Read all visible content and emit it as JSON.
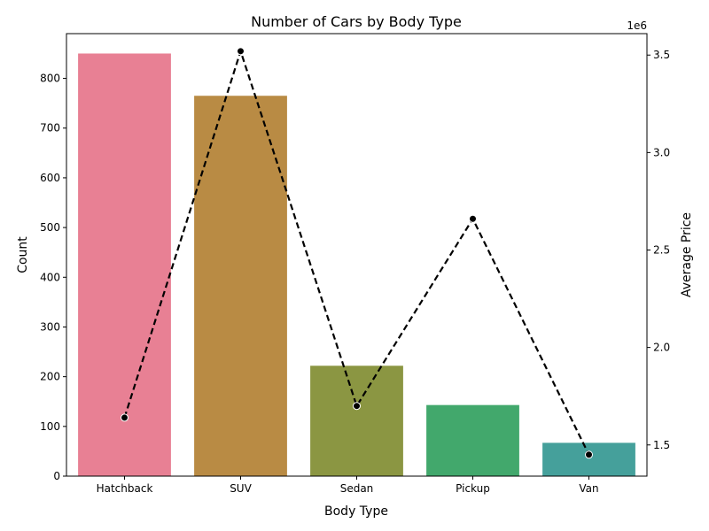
{
  "chart_data": {
    "type": "bar",
    "title": "Number of Cars by Body Type",
    "xlabel": "Body Type",
    "ylabel": "Count",
    "y2label": "Average Price",
    "y2_offset_label": "1e6",
    "categories": [
      "Hatchback",
      "SUV",
      "Sedan",
      "Pickup",
      "Van"
    ],
    "series": [
      {
        "type": "bar",
        "axis": "left",
        "values": [
          850,
          765,
          222,
          143,
          67
        ],
        "colors": [
          "#e88094",
          "#b98b44",
          "#8b9642",
          "#42a86c",
          "#45a09b"
        ]
      },
      {
        "type": "line",
        "axis": "right",
        "values": [
          1640000,
          3520000,
          1700000,
          2660000,
          1450000
        ],
        "color": "#000000",
        "style": "dashed",
        "marker": "circle"
      }
    ],
    "ylim": [
      0,
      890
    ],
    "y2lim": [
      1340000,
      3610000
    ],
    "yticks": [
      0,
      100,
      200,
      300,
      400,
      500,
      600,
      700,
      800
    ],
    "y2ticks": [
      1500000,
      2000000,
      2500000,
      3000000,
      3500000
    ],
    "y2tick_labels": [
      "1.5",
      "2.0",
      "2.5",
      "3.0",
      "3.5"
    ],
    "grid": false,
    "legend": "none"
  }
}
